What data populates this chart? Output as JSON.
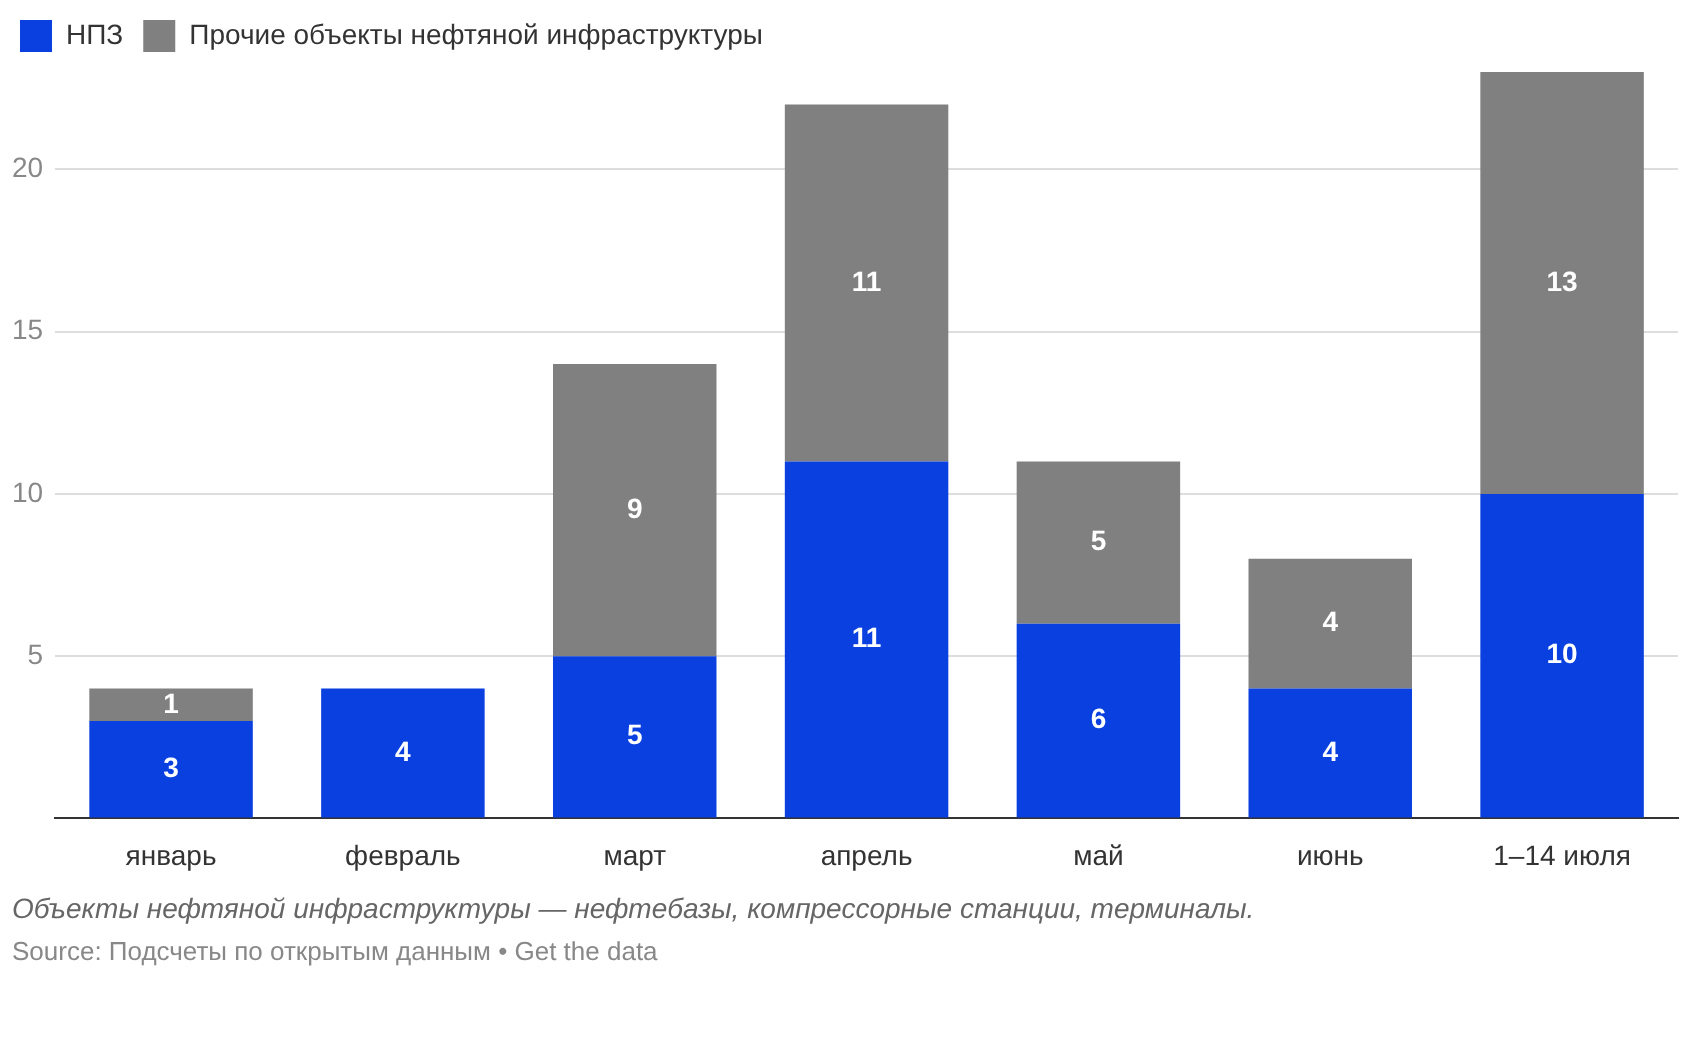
{
  "chart_data": {
    "type": "bar",
    "stacked": true,
    "categories": [
      "январь",
      "февраль",
      "март",
      "апрель",
      "май",
      "июнь",
      "1–14 июля"
    ],
    "series": [
      {
        "name": "НПЗ",
        "color": "#0a3fe0",
        "values": [
          3,
          4,
          5,
          11,
          6,
          4,
          10
        ]
      },
      {
        "name": "Прочие объекты нефтяной инфраструктуры",
        "color": "#808080",
        "values": [
          1,
          null,
          9,
          11,
          5,
          4,
          13
        ]
      }
    ],
    "ylim": [
      0,
      23
    ],
    "yticks": [
      {
        "value": 0,
        "label": null
      },
      5,
      10,
      15,
      20
    ],
    "grid": "y",
    "legend": "top left",
    "data_labels": true,
    "annotations": [
      "Объекты нефтяной инфраструктуры — нефтебазы, компрессорные станции, терминалы.",
      "Source: Подсчеты по открытым данным • Get the data"
    ]
  }
}
